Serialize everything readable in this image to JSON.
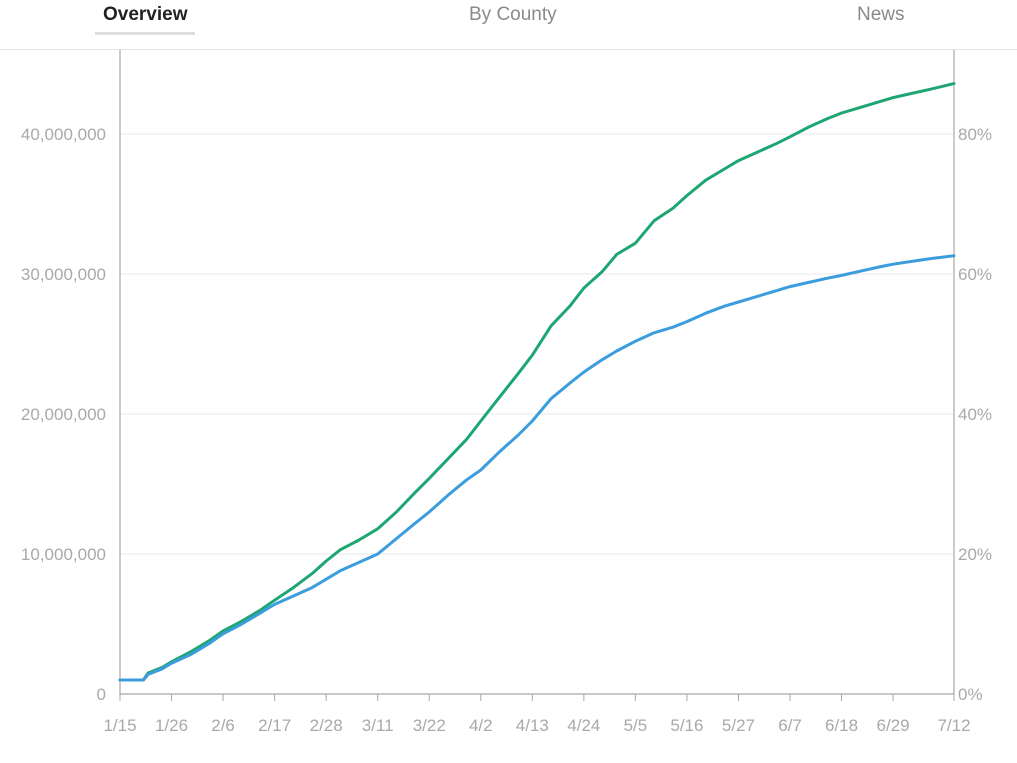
{
  "tabs": [
    {
      "label": "Overview",
      "active": true
    },
    {
      "label": "By County",
      "active": false
    },
    {
      "label": "News",
      "active": false
    }
  ],
  "chart_data": {
    "type": "line",
    "title": "",
    "xlabel": "",
    "ylabel": "",
    "x_start": "1/15",
    "x_end": "7/12",
    "x_ticks": [
      "1/15",
      "1/26",
      "2/6",
      "2/17",
      "2/28",
      "3/11",
      "3/22",
      "4/2",
      "4/13",
      "4/24",
      "5/5",
      "5/16",
      "5/27",
      "6/7",
      "6/18",
      "6/29",
      "7/12"
    ],
    "y_left_ticks": [
      "0",
      "10,000,000",
      "20,000,000",
      "30,000,000",
      "40,000,000"
    ],
    "y_left_lim": [
      0,
      46000000
    ],
    "y_right_ticks": [
      "0%",
      "20%",
      "40%",
      "60%",
      "80%"
    ],
    "y_right_lim": [
      0,
      92
    ],
    "grid": true,
    "legend": "none",
    "series": [
      {
        "color": "#1ea672",
        "points": [
          [
            "1/15",
            1000000
          ],
          [
            "1/20",
            1000000
          ],
          [
            "1/21",
            1500000
          ],
          [
            "1/24",
            1900000
          ],
          [
            "1/26",
            2300000
          ],
          [
            "1/30",
            3000000
          ],
          [
            "2/3",
            3800000
          ],
          [
            "2/6",
            4500000
          ],
          [
            "2/10",
            5200000
          ],
          [
            "2/14",
            6000000
          ],
          [
            "2/17",
            6700000
          ],
          [
            "2/21",
            7600000
          ],
          [
            "2/25",
            8600000
          ],
          [
            "2/28",
            9500000
          ],
          [
            "3/3",
            10300000
          ],
          [
            "3/7",
            11000000
          ],
          [
            "3/11",
            11800000
          ],
          [
            "3/15",
            13000000
          ],
          [
            "3/19",
            14400000
          ],
          [
            "3/22",
            15400000
          ],
          [
            "3/26",
            16800000
          ],
          [
            "3/30",
            18200000
          ],
          [
            "4/2",
            19500000
          ],
          [
            "4/6",
            21200000
          ],
          [
            "4/10",
            22900000
          ],
          [
            "4/13",
            24200000
          ],
          [
            "4/17",
            26300000
          ],
          [
            "4/21",
            27700000
          ],
          [
            "4/24",
            29000000
          ],
          [
            "4/28",
            30200000
          ],
          [
            "5/1",
            31400000
          ],
          [
            "5/5",
            32200000
          ],
          [
            "5/9",
            33800000
          ],
          [
            "5/13",
            34700000
          ],
          [
            "5/16",
            35600000
          ],
          [
            "5/20",
            36700000
          ],
          [
            "5/24",
            37500000
          ],
          [
            "5/27",
            38100000
          ],
          [
            "5/31",
            38700000
          ],
          [
            "6/4",
            39300000
          ],
          [
            "6/7",
            39800000
          ],
          [
            "6/11",
            40500000
          ],
          [
            "6/15",
            41100000
          ],
          [
            "6/18",
            41500000
          ],
          [
            "6/22",
            41900000
          ],
          [
            "6/26",
            42300000
          ],
          [
            "6/29",
            42600000
          ],
          [
            "7/3",
            42900000
          ],
          [
            "7/7",
            43200000
          ],
          [
            "7/12",
            43600000
          ]
        ]
      },
      {
        "color": "#3b9ddd",
        "points": [
          [
            "1/15",
            1000000
          ],
          [
            "1/20",
            1000000
          ],
          [
            "1/21",
            1400000
          ],
          [
            "1/24",
            1800000
          ],
          [
            "1/26",
            2200000
          ],
          [
            "1/30",
            2800000
          ],
          [
            "2/3",
            3600000
          ],
          [
            "2/6",
            4300000
          ],
          [
            "2/10",
            5000000
          ],
          [
            "2/14",
            5800000
          ],
          [
            "2/17",
            6400000
          ],
          [
            "2/21",
            7000000
          ],
          [
            "2/25",
            7600000
          ],
          [
            "2/28",
            8200000
          ],
          [
            "3/3",
            8800000
          ],
          [
            "3/7",
            9400000
          ],
          [
            "3/11",
            10000000
          ],
          [
            "3/15",
            11100000
          ],
          [
            "3/19",
            12200000
          ],
          [
            "3/22",
            13000000
          ],
          [
            "3/26",
            14200000
          ],
          [
            "3/30",
            15300000
          ],
          [
            "4/2",
            16000000
          ],
          [
            "4/6",
            17300000
          ],
          [
            "4/10",
            18500000
          ],
          [
            "4/13",
            19500000
          ],
          [
            "4/17",
            21100000
          ],
          [
            "4/21",
            22200000
          ],
          [
            "4/24",
            23000000
          ],
          [
            "4/28",
            23900000
          ],
          [
            "5/1",
            24500000
          ],
          [
            "5/5",
            25200000
          ],
          [
            "5/9",
            25800000
          ],
          [
            "5/13",
            26200000
          ],
          [
            "5/16",
            26600000
          ],
          [
            "5/20",
            27200000
          ],
          [
            "5/24",
            27700000
          ],
          [
            "5/27",
            28000000
          ],
          [
            "5/31",
            28400000
          ],
          [
            "6/4",
            28800000
          ],
          [
            "6/7",
            29100000
          ],
          [
            "6/11",
            29400000
          ],
          [
            "6/15",
            29700000
          ],
          [
            "6/18",
            29900000
          ],
          [
            "6/22",
            30200000
          ],
          [
            "6/26",
            30500000
          ],
          [
            "6/29",
            30700000
          ],
          [
            "7/3",
            30900000
          ],
          [
            "7/7",
            31100000
          ],
          [
            "7/12",
            31300000
          ]
        ]
      }
    ]
  }
}
